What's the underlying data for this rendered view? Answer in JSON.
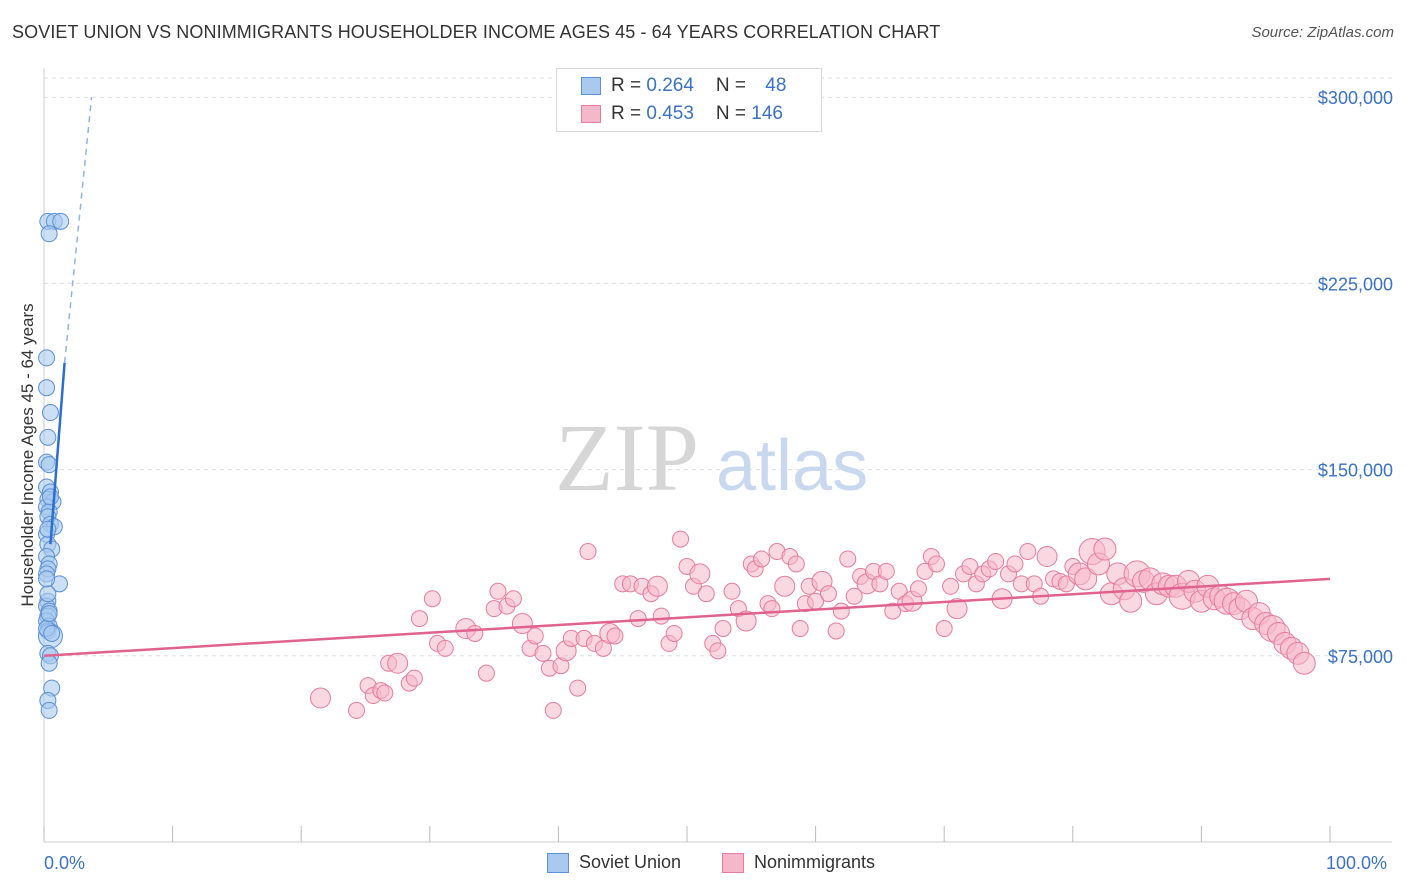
{
  "title": "SOVIET UNION VS NONIMMIGRANTS HOUSEHOLDER INCOME AGES 45 - 64 YEARS CORRELATION CHART",
  "source": "Source: ZipAtlas.com",
  "watermark": {
    "zip": "ZIP",
    "atlas": "atlas"
  },
  "colors": {
    "blue_fill": "#a9c9ef",
    "blue_stroke": "#5b8fd6",
    "blue_line": "#2b6fd1",
    "pink_fill": "#f5b8cb",
    "pink_stroke": "#e77ba0",
    "pink_line": "#e0628e",
    "axis_text": "#3a72c4",
    "grid": "#dedede"
  },
  "legend": {
    "rows": [
      {
        "r_label": "R = ",
        "r_value": "0.264",
        "n_label": "N = ",
        "n_value": "48"
      },
      {
        "r_label": "R = ",
        "r_value": "0.453",
        "n_label": "N = ",
        "n_value": "146"
      }
    ]
  },
  "bottom_legend": {
    "series1": "Soviet Union",
    "series2": "Nonimmigrants"
  },
  "chart_data": {
    "type": "scatter",
    "xlabel": "",
    "ylabel": "Householder Income Ages 45 - 64 years",
    "xlim": [
      0,
      100
    ],
    "ylim": [
      0,
      315000
    ],
    "x_tick_labels": [
      "0.0%",
      "100.0%"
    ],
    "y_ticks": [
      75000,
      150000,
      225000,
      300000
    ],
    "y_tick_labels": [
      "$75,000",
      "$150,000",
      "$225,000",
      "$300,000"
    ],
    "grid": true,
    "series": [
      {
        "name": "Soviet Union",
        "trend": {
          "x1": 0.5,
          "y1": 120000,
          "x2": 1.6,
          "y2": 193000,
          "dash_to_x": 3.7,
          "dash_to_y": 300000
        },
        "points": [
          [
            0.3,
            250000
          ],
          [
            0.8,
            250000
          ],
          [
            1.3,
            250000
          ],
          [
            0.4,
            245000
          ],
          [
            0.2,
            195000
          ],
          [
            0.2,
            183000
          ],
          [
            0.5,
            173000
          ],
          [
            0.3,
            163000
          ],
          [
            0.2,
            153000
          ],
          [
            0.4,
            152000
          ],
          [
            0.2,
            143000
          ],
          [
            0.5,
            141000
          ],
          [
            0.3,
            138000
          ],
          [
            0.7,
            137000
          ],
          [
            0.2,
            135000
          ],
          [
            0.4,
            133000
          ],
          [
            0.3,
            131000
          ],
          [
            0.5,
            128000
          ],
          [
            0.8,
            127000
          ],
          [
            0.2,
            124000
          ],
          [
            0.3,
            120000
          ],
          [
            0.6,
            118000
          ],
          [
            0.2,
            115000
          ],
          [
            0.4,
            112000
          ],
          [
            0.3,
            110000
          ],
          [
            0.2,
            108000
          ],
          [
            1.2,
            104000
          ],
          [
            0.3,
            97000
          ],
          [
            0.2,
            95000
          ],
          [
            0.4,
            93000
          ],
          [
            0.3,
            91000
          ],
          [
            0.2,
            89000
          ],
          [
            0.4,
            87000
          ],
          [
            0.3,
            85000
          ],
          [
            0.5,
            83000
          ],
          [
            0.3,
            76000
          ],
          [
            0.5,
            75000
          ],
          [
            0.4,
            72000
          ],
          [
            0.6,
            62000
          ],
          [
            0.3,
            57000
          ],
          [
            0.4,
            53000
          ],
          [
            0.2,
            86000
          ],
          [
            0.6,
            84000
          ],
          [
            0.3,
            100000
          ],
          [
            0.2,
            106000
          ],
          [
            0.5,
            139000
          ],
          [
            0.3,
            126000
          ],
          [
            0.4,
            92000
          ]
        ]
      },
      {
        "name": "Nonimmigrants",
        "trend": {
          "x1": 0,
          "y1": 75000,
          "x2": 100,
          "y2": 106000
        },
        "points": [
          [
            21.5,
            58000
          ],
          [
            24.3,
            53000
          ],
          [
            25.2,
            63000
          ],
          [
            25.6,
            59000
          ],
          [
            26.2,
            61000
          ],
          [
            26.5,
            60000
          ],
          [
            26.8,
            72000
          ],
          [
            27.5,
            72000
          ],
          [
            28.4,
            64000
          ],
          [
            28.8,
            66000
          ],
          [
            29.2,
            90000
          ],
          [
            30.2,
            98000
          ],
          [
            30.6,
            80000
          ],
          [
            31.2,
            78000
          ],
          [
            32.8,
            86000
          ],
          [
            33.5,
            84000
          ],
          [
            34.4,
            68000
          ],
          [
            35.0,
            94000
          ],
          [
            35.3,
            101000
          ],
          [
            36.0,
            95000
          ],
          [
            36.5,
            98000
          ],
          [
            37.2,
            88000
          ],
          [
            37.8,
            78000
          ],
          [
            38.2,
            83000
          ],
          [
            38.8,
            76000
          ],
          [
            39.3,
            70000
          ],
          [
            39.6,
            53000
          ],
          [
            40.2,
            71000
          ],
          [
            40.6,
            77000
          ],
          [
            41.0,
            82000
          ],
          [
            41.5,
            62000
          ],
          [
            42.0,
            82000
          ],
          [
            42.3,
            117000
          ],
          [
            42.8,
            80000
          ],
          [
            43.5,
            78000
          ],
          [
            44.0,
            84000
          ],
          [
            44.4,
            83000
          ],
          [
            45.0,
            104000
          ],
          [
            45.6,
            104000
          ],
          [
            46.2,
            90000
          ],
          [
            46.5,
            103000
          ],
          [
            47.2,
            100000
          ],
          [
            47.7,
            103000
          ],
          [
            48.0,
            91000
          ],
          [
            48.6,
            80000
          ],
          [
            49.0,
            84000
          ],
          [
            49.5,
            122000
          ],
          [
            50.0,
            111000
          ],
          [
            50.5,
            103000
          ],
          [
            51.0,
            108000
          ],
          [
            51.5,
            100000
          ],
          [
            52.0,
            80000
          ],
          [
            52.4,
            77000
          ],
          [
            52.8,
            86000
          ],
          [
            53.5,
            101000
          ],
          [
            54.0,
            94000
          ],
          [
            54.6,
            89000
          ],
          [
            55.0,
            112000
          ],
          [
            55.3,
            110000
          ],
          [
            55.8,
            114000
          ],
          [
            56.3,
            96000
          ],
          [
            56.6,
            94000
          ],
          [
            57.0,
            117000
          ],
          [
            57.6,
            103000
          ],
          [
            58.0,
            115000
          ],
          [
            58.5,
            112000
          ],
          [
            58.8,
            86000
          ],
          [
            59.2,
            96000
          ],
          [
            59.5,
            103000
          ],
          [
            60.0,
            97000
          ],
          [
            60.5,
            105000
          ],
          [
            61.0,
            100000
          ],
          [
            61.6,
            85000
          ],
          [
            62.0,
            93000
          ],
          [
            62.5,
            114000
          ],
          [
            63.0,
            99000
          ],
          [
            63.5,
            107000
          ],
          [
            64.0,
            104000
          ],
          [
            64.5,
            109000
          ],
          [
            65.0,
            104000
          ],
          [
            65.5,
            109000
          ],
          [
            66.0,
            93000
          ],
          [
            66.5,
            101000
          ],
          [
            67.0,
            96000
          ],
          [
            67.5,
            97000
          ],
          [
            68.0,
            102000
          ],
          [
            68.5,
            109000
          ],
          [
            69.0,
            115000
          ],
          [
            69.4,
            112000
          ],
          [
            70.0,
            86000
          ],
          [
            70.5,
            103000
          ],
          [
            71.0,
            94000
          ],
          [
            71.5,
            108000
          ],
          [
            72.0,
            111000
          ],
          [
            72.5,
            104000
          ],
          [
            73.0,
            108000
          ],
          [
            73.5,
            110000
          ],
          [
            74.0,
            113000
          ],
          [
            74.5,
            98000
          ],
          [
            75.0,
            108000
          ],
          [
            75.5,
            112000
          ],
          [
            76.0,
            104000
          ],
          [
            76.5,
            117000
          ],
          [
            77.0,
            104000
          ],
          [
            77.5,
            99000
          ],
          [
            78.0,
            115000
          ],
          [
            78.5,
            106000
          ],
          [
            79.0,
            105000
          ],
          [
            79.5,
            104000
          ],
          [
            80.0,
            111000
          ],
          [
            80.5,
            108000
          ],
          [
            81.0,
            106000
          ],
          [
            81.5,
            117000
          ],
          [
            82.0,
            112000
          ],
          [
            82.5,
            118000
          ],
          [
            83.0,
            100000
          ],
          [
            83.5,
            108000
          ],
          [
            84.0,
            102000
          ],
          [
            84.5,
            97000
          ],
          [
            85.0,
            108000
          ],
          [
            85.5,
            105000
          ],
          [
            86.0,
            106000
          ],
          [
            86.5,
            100000
          ],
          [
            87.0,
            104000
          ],
          [
            87.5,
            103000
          ],
          [
            88.0,
            103000
          ],
          [
            88.5,
            99000
          ],
          [
            89.0,
            105000
          ],
          [
            89.5,
            101000
          ],
          [
            90.0,
            97000
          ],
          [
            90.5,
            103000
          ],
          [
            91.0,
            98000
          ],
          [
            91.5,
            99000
          ],
          [
            92.0,
            97000
          ],
          [
            92.5,
            96000
          ],
          [
            93.0,
            94000
          ],
          [
            93.5,
            97000
          ],
          [
            94.0,
            90000
          ],
          [
            94.5,
            92000
          ],
          [
            95.0,
            88000
          ],
          [
            95.5,
            86000
          ],
          [
            96.0,
            84000
          ],
          [
            96.5,
            80000
          ],
          [
            97.0,
            78000
          ],
          [
            97.5,
            76000
          ],
          [
            98.0,
            72000
          ]
        ]
      }
    ]
  }
}
